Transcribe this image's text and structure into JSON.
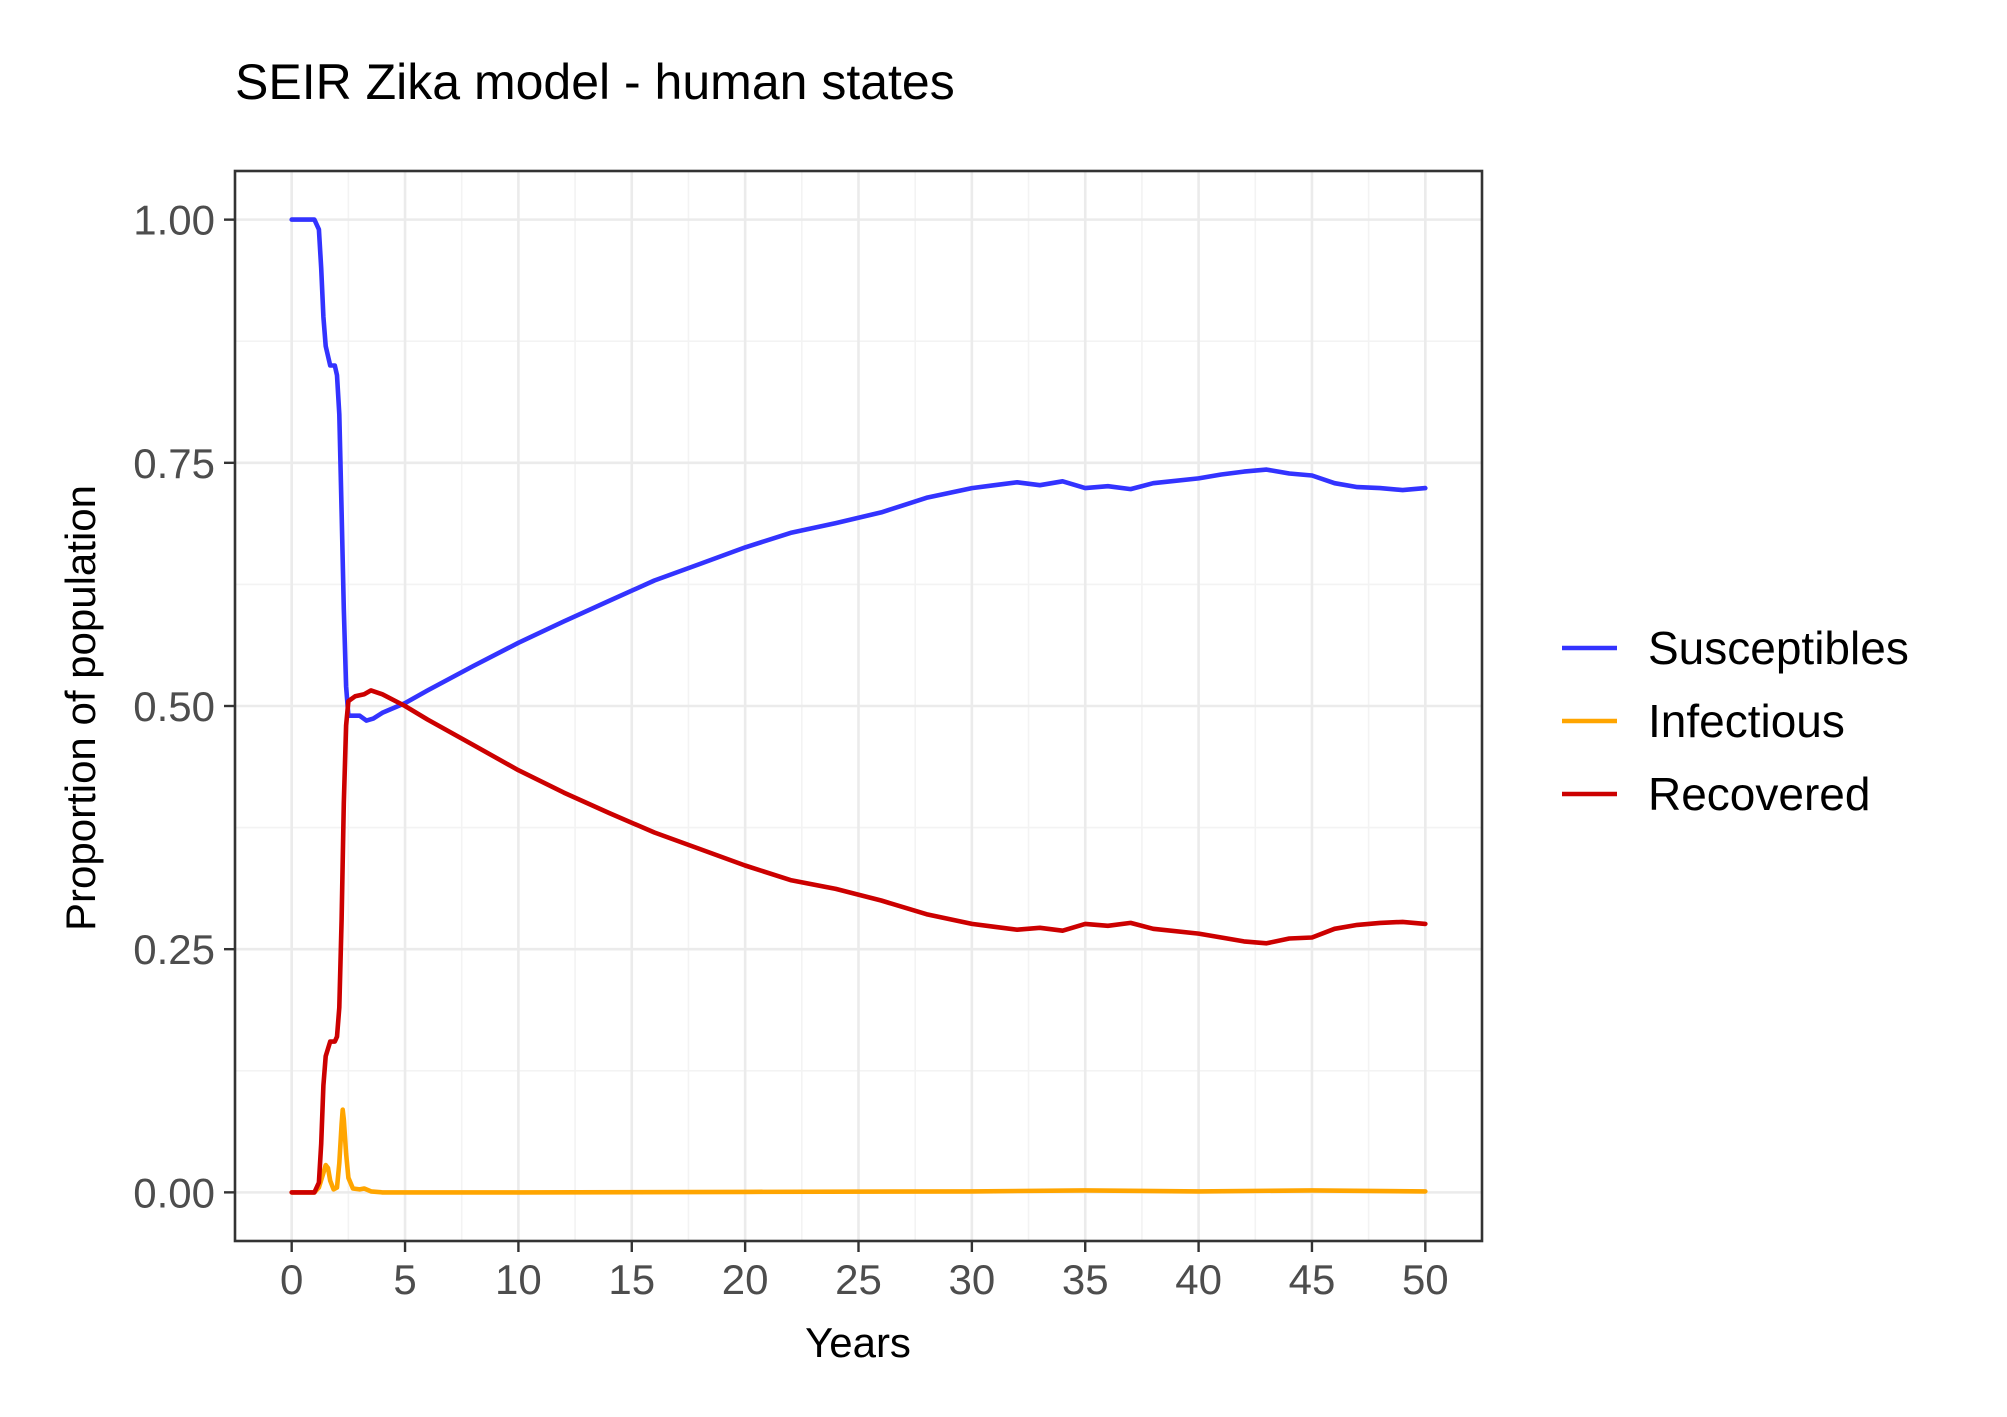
{
  "chart_data": {
    "type": "line",
    "title": "SEIR Zika model - human states",
    "xlabel": "Years",
    "ylabel": "Proportion of population",
    "xlim": [
      -2.5,
      52.5
    ],
    "ylim": [
      -0.05,
      1.05
    ],
    "x_ticks": [
      0,
      5,
      10,
      15,
      20,
      25,
      30,
      35,
      40,
      45,
      50
    ],
    "x_tick_labels": [
      "0",
      "5",
      "10",
      "15",
      "20",
      "25",
      "30",
      "35",
      "40",
      "45",
      "50"
    ],
    "y_ticks": [
      0,
      0.25,
      0.5,
      0.75,
      1.0
    ],
    "y_tick_labels": [
      "0.00",
      "0.25",
      "0.50",
      "0.75",
      "1.00"
    ],
    "grid": true,
    "legend_position": "right",
    "series": [
      {
        "name": "Susceptibles",
        "color": "#3333FF",
        "points": [
          [
            0,
            1.0
          ],
          [
            1.0,
            1.0
          ],
          [
            1.2,
            0.99
          ],
          [
            1.3,
            0.95
          ],
          [
            1.4,
            0.9
          ],
          [
            1.5,
            0.87
          ],
          [
            1.7,
            0.85
          ],
          [
            1.9,
            0.85
          ],
          [
            2.0,
            0.84
          ],
          [
            2.1,
            0.8
          ],
          [
            2.2,
            0.7
          ],
          [
            2.3,
            0.6
          ],
          [
            2.4,
            0.52
          ],
          [
            2.5,
            0.49
          ],
          [
            2.8,
            0.49
          ],
          [
            3.0,
            0.49
          ],
          [
            3.3,
            0.485
          ],
          [
            3.6,
            0.487
          ],
          [
            4,
            0.493
          ],
          [
            5,
            0.503
          ],
          [
            6,
            0.516
          ],
          [
            8,
            0.541
          ],
          [
            10,
            0.565
          ],
          [
            12,
            0.587
          ],
          [
            14,
            0.608
          ],
          [
            16,
            0.629
          ],
          [
            18,
            0.646
          ],
          [
            20,
            0.663
          ],
          [
            22,
            0.678
          ],
          [
            24,
            0.688
          ],
          [
            26,
            0.699
          ],
          [
            28,
            0.714
          ],
          [
            30,
            0.724
          ],
          [
            31,
            0.727
          ],
          [
            32,
            0.73
          ],
          [
            33,
            0.727
          ],
          [
            34,
            0.731
          ],
          [
            35,
            0.724
          ],
          [
            36,
            0.726
          ],
          [
            37,
            0.723
          ],
          [
            38,
            0.729
          ],
          [
            40,
            0.734
          ],
          [
            41,
            0.738
          ],
          [
            42,
            0.741
          ],
          [
            43,
            0.743
          ],
          [
            44,
            0.739
          ],
          [
            45,
            0.737
          ],
          [
            46,
            0.729
          ],
          [
            47,
            0.725
          ],
          [
            48,
            0.724
          ],
          [
            49,
            0.722
          ],
          [
            50,
            0.724
          ]
        ]
      },
      {
        "name": "Infectious",
        "color": "#FFA500",
        "points": [
          [
            0,
            0.0
          ],
          [
            1.0,
            0.0
          ],
          [
            1.2,
            0.005
          ],
          [
            1.4,
            0.02
          ],
          [
            1.5,
            0.028
          ],
          [
            1.6,
            0.025
          ],
          [
            1.7,
            0.012
          ],
          [
            1.85,
            0.003
          ],
          [
            2.0,
            0.005
          ],
          [
            2.1,
            0.03
          ],
          [
            2.2,
            0.07
          ],
          [
            2.25,
            0.085
          ],
          [
            2.3,
            0.075
          ],
          [
            2.4,
            0.04
          ],
          [
            2.5,
            0.015
          ],
          [
            2.7,
            0.004
          ],
          [
            3.0,
            0.003
          ],
          [
            3.2,
            0.004
          ],
          [
            3.5,
            0.001
          ],
          [
            4,
            0.0
          ],
          [
            10,
            0.0
          ],
          [
            20,
            0.0005
          ],
          [
            30,
            0.001
          ],
          [
            35,
            0.002
          ],
          [
            40,
            0.001
          ],
          [
            45,
            0.002
          ],
          [
            50,
            0.001
          ]
        ]
      },
      {
        "name": "Recovered",
        "color": "#CC0000",
        "points": [
          [
            0,
            0.0
          ],
          [
            1.0,
            0.0
          ],
          [
            1.2,
            0.01
          ],
          [
            1.3,
            0.05
          ],
          [
            1.4,
            0.11
          ],
          [
            1.5,
            0.14
          ],
          [
            1.7,
            0.155
          ],
          [
            1.9,
            0.155
          ],
          [
            2.0,
            0.16
          ],
          [
            2.1,
            0.19
          ],
          [
            2.2,
            0.28
          ],
          [
            2.3,
            0.4
          ],
          [
            2.4,
            0.48
          ],
          [
            2.5,
            0.505
          ],
          [
            2.8,
            0.51
          ],
          [
            3.2,
            0.512
          ],
          [
            3.5,
            0.516
          ],
          [
            4,
            0.512
          ],
          [
            5,
            0.5
          ],
          [
            6,
            0.486
          ],
          [
            8,
            0.46
          ],
          [
            10,
            0.434
          ],
          [
            12,
            0.411
          ],
          [
            14,
            0.39
          ],
          [
            16,
            0.37
          ],
          [
            18,
            0.353
          ],
          [
            20,
            0.336
          ],
          [
            22,
            0.321
          ],
          [
            24,
            0.312
          ],
          [
            26,
            0.3
          ],
          [
            28,
            0.286
          ],
          [
            30,
            0.276
          ],
          [
            31,
            0.273
          ],
          [
            32,
            0.27
          ],
          [
            33,
            0.272
          ],
          [
            34,
            0.269
          ],
          [
            35,
            0.276
          ],
          [
            36,
            0.274
          ],
          [
            37,
            0.277
          ],
          [
            38,
            0.271
          ],
          [
            40,
            0.266
          ],
          [
            41,
            0.262
          ],
          [
            42,
            0.258
          ],
          [
            43,
            0.256
          ],
          [
            44,
            0.261
          ],
          [
            45,
            0.262
          ],
          [
            46,
            0.271
          ],
          [
            47,
            0.275
          ],
          [
            48,
            0.277
          ],
          [
            49,
            0.278
          ],
          [
            50,
            0.276
          ]
        ]
      }
    ]
  }
}
